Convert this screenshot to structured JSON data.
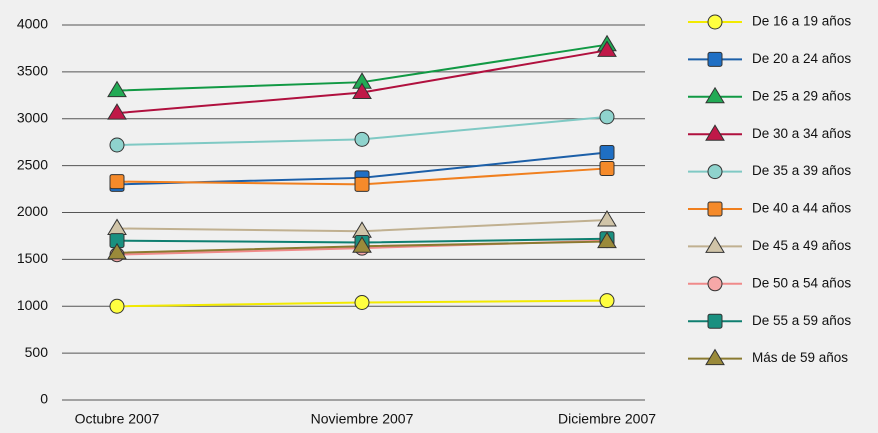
{
  "chart_data": {
    "type": "line",
    "categories": [
      "Octubre 2007",
      "Noviembre 2007",
      "Diciembre 2007"
    ],
    "ylim": [
      0,
      4000
    ],
    "yticks": [
      0,
      500,
      1000,
      1500,
      2000,
      2500,
      3000,
      3500,
      4000
    ],
    "grid": true,
    "series": [
      {
        "name": "De 16 a 19 años",
        "color": "#f2ea00",
        "fill": "#ffff40",
        "marker": "circle",
        "values": [
          1000,
          1040,
          1060
        ]
      },
      {
        "name": "De 20 a 24 años",
        "color": "#1c5fa8",
        "fill": "#1f6fc4",
        "marker": "square",
        "values": [
          2300,
          2370,
          2640
        ]
      },
      {
        "name": "De 25 a 29 años",
        "color": "#119944",
        "fill": "#22aa55",
        "marker": "triangle",
        "values": [
          3300,
          3390,
          3790
        ]
      },
      {
        "name": "De 30 a 34 años",
        "color": "#b0103e",
        "fill": "#c01848",
        "marker": "triangle",
        "values": [
          3060,
          3280,
          3730
        ]
      },
      {
        "name": "De 35 a 39 años",
        "color": "#7fc9c4",
        "fill": "#8fd3cd",
        "marker": "circle",
        "values": [
          2720,
          2780,
          3020
        ]
      },
      {
        "name": "De 40 a 44 años",
        "color": "#f07f1e",
        "fill": "#f58a2a",
        "marker": "square",
        "values": [
          2330,
          2300,
          2470
        ]
      },
      {
        "name": "De 45 a 49 años",
        "color": "#c0b090",
        "fill": "#d0c4a8",
        "marker": "triangle",
        "values": [
          1830,
          1800,
          1920
        ]
      },
      {
        "name": "De 50 a 54 años",
        "color": "#f08a8a",
        "fill": "#f6a8a8",
        "marker": "circle",
        "values": [
          1550,
          1620,
          1700
        ]
      },
      {
        "name": "De 55 a 59 años",
        "color": "#0f7f70",
        "fill": "#1a9080",
        "marker": "square",
        "values": [
          1700,
          1680,
          1720
        ]
      },
      {
        "name": "Más de 59 años",
        "color": "#8a7a30",
        "fill": "#9a8a3a",
        "marker": "triangle",
        "values": [
          1570,
          1640,
          1690
        ]
      }
    ]
  }
}
